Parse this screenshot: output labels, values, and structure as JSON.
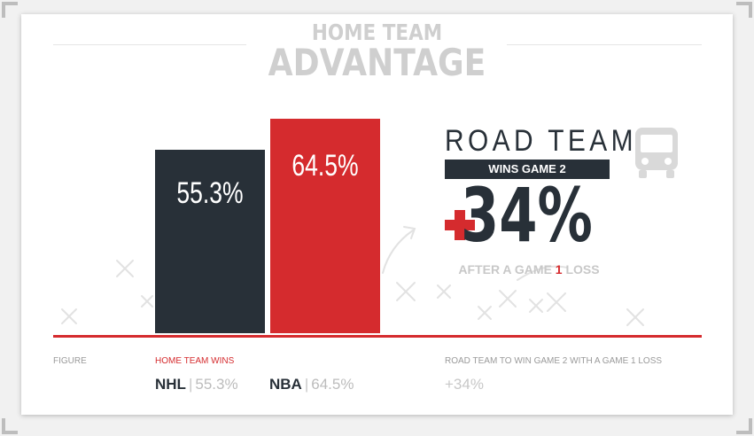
{
  "title": {
    "line1": "HOME TEAM",
    "line2": "ADVANTAGE"
  },
  "chart_data": {
    "type": "bar",
    "categories": [
      "NHL",
      "NBA"
    ],
    "values": [
      55.3,
      64.5
    ],
    "value_labels": [
      "55.3%",
      "64.5%"
    ],
    "colors": [
      "#283038",
      "#d52b2e"
    ],
    "ylim": [
      0,
      100
    ],
    "series": [
      {
        "name": "HOME TEAM WINS",
        "values": [
          55.3,
          64.5
        ]
      }
    ]
  },
  "callout": {
    "title": "ROAD TEAM",
    "subtitle": "WINS GAME 2",
    "value": "34%",
    "after_pre": "AFTER A GAME ",
    "after_num": "1",
    "after_post": " LOSS",
    "accent": "#d52b2e",
    "icon": "bus-icon"
  },
  "footer": {
    "figure_label": "FIGURE",
    "home_label": "HOME TEAM WINS",
    "nhl": {
      "name": "NHL",
      "value": "55.3%"
    },
    "nba": {
      "name": "NBA",
      "value": "64.5%"
    },
    "road_label": "ROAD TEAM TO WIN GAME 2 WITH A GAME 1 LOSS",
    "road_value": "+34%"
  }
}
